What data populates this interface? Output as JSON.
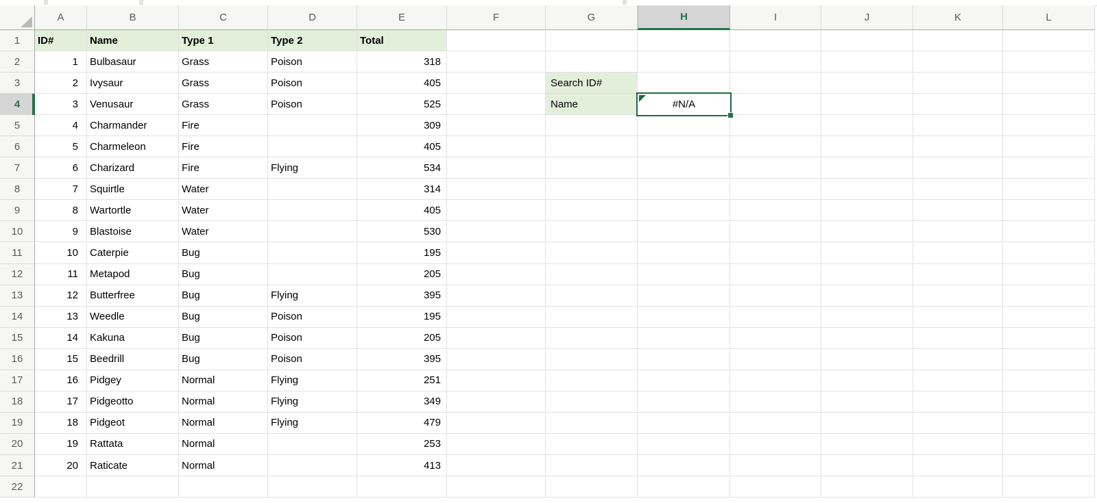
{
  "grid": {
    "column_labels": [
      "A",
      "B",
      "C",
      "D",
      "E",
      "F",
      "G",
      "H",
      "I",
      "J",
      "K",
      "L"
    ],
    "row_count": 22,
    "selected_column": "H",
    "selected_row": 4,
    "active_cell": {
      "ref": "H4",
      "value": "#N/A"
    }
  },
  "table": {
    "headers": [
      "ID#",
      "Name",
      "Type 1",
      "Type 2",
      "Total"
    ],
    "rows": [
      [
        1,
        "Bulbasaur",
        "Grass",
        "Poison",
        318
      ],
      [
        2,
        "Ivysaur",
        "Grass",
        "Poison",
        405
      ],
      [
        3,
        "Venusaur",
        "Grass",
        "Poison",
        525
      ],
      [
        4,
        "Charmander",
        "Fire",
        "",
        309
      ],
      [
        5,
        "Charmeleon",
        "Fire",
        "",
        405
      ],
      [
        6,
        "Charizard",
        "Fire",
        "Flying",
        534
      ],
      [
        7,
        "Squirtle",
        "Water",
        "",
        314
      ],
      [
        8,
        "Wartortle",
        "Water",
        "",
        405
      ],
      [
        9,
        "Blastoise",
        "Water",
        "",
        530
      ],
      [
        10,
        "Caterpie",
        "Bug",
        "",
        195
      ],
      [
        11,
        "Metapod",
        "Bug",
        "",
        205
      ],
      [
        12,
        "Butterfree",
        "Bug",
        "Flying",
        395
      ],
      [
        13,
        "Weedle",
        "Bug",
        "Poison",
        195
      ],
      [
        14,
        "Kakuna",
        "Bug",
        "Poison",
        205
      ],
      [
        15,
        "Beedrill",
        "Bug",
        "Poison",
        395
      ],
      [
        16,
        "Pidgey",
        "Normal",
        "Flying",
        251
      ],
      [
        17,
        "Pidgeotto",
        "Normal",
        "Flying",
        349
      ],
      [
        18,
        "Pidgeot",
        "Normal",
        "Flying",
        479
      ],
      [
        19,
        "Rattata",
        "Normal",
        "",
        253
      ],
      [
        20,
        "Raticate",
        "Normal",
        "",
        413
      ]
    ]
  },
  "lookup_panel": {
    "search_label": "Search ID#",
    "name_label": "Name",
    "result": "#N/A"
  },
  "colors": {
    "excel_green": "#217346",
    "selection_border": "#1e6b41",
    "fill_green": "#e2efda",
    "selected_header_bg": "#d5d5d5"
  }
}
